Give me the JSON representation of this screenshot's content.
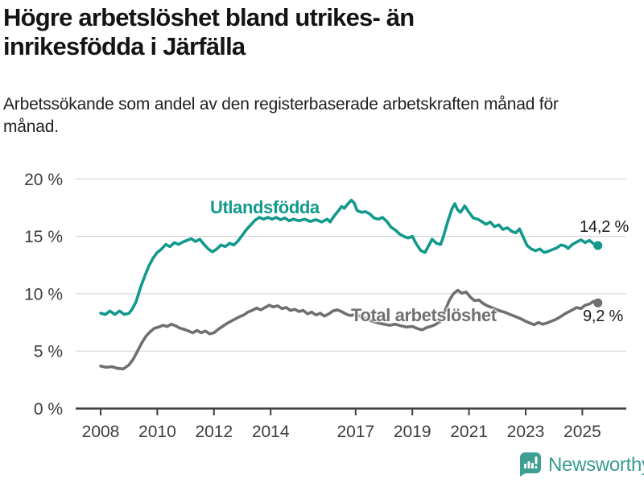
{
  "header": {
    "title": "Högre arbetslöshet bland utrikes- än inrikesfödda i Järfälla",
    "subtitle": "Arbetssökande som andel av den registerbaserade arbetskraften månad för månad."
  },
  "footer": {
    "brand": "Newsworthy",
    "brand_color": "#3a9c90",
    "logo_icon": "bar-chart-speech-bubble"
  },
  "colors": {
    "accent_teal": "#12998c",
    "line_gray": "#6f6f6f",
    "gridline": "#d8d8d8",
    "axis": "#3f3f3f",
    "tick_label": "#3d3d3d",
    "value_label": "#1a1a1a"
  },
  "chart_data": {
    "type": "line",
    "title": "Högre arbetslöshet bland utrikes- än inrikesfödda i Järfälla",
    "subtitle": "Arbetssökande som andel av den registerbaserade arbetskraften månad för månad.",
    "xlabel": "",
    "ylabel": "",
    "grid": "horizontal",
    "legend_position": "inline-labels",
    "xlim": [
      2007.8,
      2026.5
    ],
    "ylim": [
      0,
      20
    ],
    "x_ticks": [
      2008,
      2010,
      2012,
      2014,
      2017,
      2019,
      2021,
      2023,
      2025
    ],
    "y_ticks": [
      0,
      5,
      10,
      15,
      20
    ],
    "y_tick_suffix": " %",
    "series": [
      {
        "name": "Utlandsfödda",
        "color": "#12998c",
        "end_label": "14,2 %",
        "end_value": 14.2,
        "points": [
          [
            2008.0,
            8.3
          ],
          [
            2008.17,
            8.2
          ],
          [
            2008.33,
            8.5
          ],
          [
            2008.5,
            8.2
          ],
          [
            2008.67,
            8.5
          ],
          [
            2008.83,
            8.2
          ],
          [
            2009.0,
            8.3
          ],
          [
            2009.1,
            8.6
          ],
          [
            2009.25,
            9.3
          ],
          [
            2009.4,
            10.5
          ],
          [
            2009.55,
            11.5
          ],
          [
            2009.7,
            12.4
          ],
          [
            2009.85,
            13.1
          ],
          [
            2010.0,
            13.6
          ],
          [
            2010.15,
            13.9
          ],
          [
            2010.3,
            14.3
          ],
          [
            2010.45,
            14.1
          ],
          [
            2010.6,
            14.45
          ],
          [
            2010.75,
            14.3
          ],
          [
            2010.9,
            14.5
          ],
          [
            2011.05,
            14.65
          ],
          [
            2011.2,
            14.8
          ],
          [
            2011.35,
            14.55
          ],
          [
            2011.5,
            14.75
          ],
          [
            2011.65,
            14.3
          ],
          [
            2011.8,
            13.9
          ],
          [
            2011.95,
            13.65
          ],
          [
            2012.1,
            13.9
          ],
          [
            2012.25,
            14.25
          ],
          [
            2012.4,
            14.1
          ],
          [
            2012.55,
            14.4
          ],
          [
            2012.7,
            14.25
          ],
          [
            2012.85,
            14.6
          ],
          [
            2013.0,
            15.1
          ],
          [
            2013.15,
            15.6
          ],
          [
            2013.3,
            16.0
          ],
          [
            2013.45,
            16.4
          ],
          [
            2013.6,
            16.65
          ],
          [
            2013.75,
            16.5
          ],
          [
            2013.9,
            16.65
          ],
          [
            2014.05,
            16.5
          ],
          [
            2014.2,
            16.65
          ],
          [
            2014.35,
            16.45
          ],
          [
            2014.5,
            16.6
          ],
          [
            2014.65,
            16.35
          ],
          [
            2014.8,
            16.5
          ],
          [
            2015.0,
            16.35
          ],
          [
            2015.2,
            16.5
          ],
          [
            2015.4,
            16.3
          ],
          [
            2015.6,
            16.45
          ],
          [
            2015.8,
            16.25
          ],
          [
            2016.0,
            16.5
          ],
          [
            2016.1,
            16.25
          ],
          [
            2016.25,
            16.8
          ],
          [
            2016.4,
            17.25
          ],
          [
            2016.5,
            17.6
          ],
          [
            2016.6,
            17.45
          ],
          [
            2016.75,
            17.9
          ],
          [
            2016.85,
            18.15
          ],
          [
            2016.95,
            17.9
          ],
          [
            2017.05,
            17.25
          ],
          [
            2017.2,
            17.1
          ],
          [
            2017.35,
            17.15
          ],
          [
            2017.5,
            16.95
          ],
          [
            2017.65,
            16.6
          ],
          [
            2017.8,
            16.5
          ],
          [
            2017.95,
            16.65
          ],
          [
            2018.1,
            16.3
          ],
          [
            2018.25,
            15.8
          ],
          [
            2018.4,
            15.55
          ],
          [
            2018.55,
            15.2
          ],
          [
            2018.7,
            15.0
          ],
          [
            2018.85,
            14.85
          ],
          [
            2019.0,
            15.0
          ],
          [
            2019.15,
            14.3
          ],
          [
            2019.3,
            13.75
          ],
          [
            2019.45,
            13.6
          ],
          [
            2019.6,
            14.3
          ],
          [
            2019.7,
            14.75
          ],
          [
            2019.85,
            14.4
          ],
          [
            2020.0,
            14.3
          ],
          [
            2020.1,
            15.0
          ],
          [
            2020.25,
            16.3
          ],
          [
            2020.4,
            17.4
          ],
          [
            2020.5,
            17.85
          ],
          [
            2020.6,
            17.3
          ],
          [
            2020.7,
            17.1
          ],
          [
            2020.85,
            17.65
          ],
          [
            2021.0,
            17.1
          ],
          [
            2021.15,
            16.6
          ],
          [
            2021.3,
            16.5
          ],
          [
            2021.45,
            16.3
          ],
          [
            2021.6,
            16.05
          ],
          [
            2021.75,
            16.25
          ],
          [
            2021.9,
            15.85
          ],
          [
            2022.05,
            16.0
          ],
          [
            2022.2,
            15.6
          ],
          [
            2022.35,
            15.75
          ],
          [
            2022.5,
            15.45
          ],
          [
            2022.65,
            15.3
          ],
          [
            2022.78,
            15.65
          ],
          [
            2022.9,
            15.0
          ],
          [
            2023.05,
            14.2
          ],
          [
            2023.2,
            13.9
          ],
          [
            2023.35,
            13.75
          ],
          [
            2023.5,
            13.9
          ],
          [
            2023.65,
            13.6
          ],
          [
            2023.8,
            13.7
          ],
          [
            2023.95,
            13.85
          ],
          [
            2024.1,
            14.0
          ],
          [
            2024.25,
            14.25
          ],
          [
            2024.4,
            14.15
          ],
          [
            2024.5,
            13.95
          ],
          [
            2024.65,
            14.3
          ],
          [
            2024.8,
            14.5
          ],
          [
            2024.95,
            14.7
          ],
          [
            2025.1,
            14.45
          ],
          [
            2025.25,
            14.65
          ],
          [
            2025.4,
            14.35
          ],
          [
            2025.55,
            14.2
          ]
        ]
      },
      {
        "name": "Total arbetslöshet",
        "color": "#6f6f6f",
        "end_label": "9,2 %",
        "end_value": 9.2,
        "points": [
          [
            2008.0,
            3.7
          ],
          [
            2008.2,
            3.6
          ],
          [
            2008.4,
            3.65
          ],
          [
            2008.6,
            3.5
          ],
          [
            2008.8,
            3.45
          ],
          [
            2009.0,
            3.8
          ],
          [
            2009.15,
            4.3
          ],
          [
            2009.3,
            5.0
          ],
          [
            2009.45,
            5.7
          ],
          [
            2009.6,
            6.3
          ],
          [
            2009.75,
            6.7
          ],
          [
            2009.9,
            7.0
          ],
          [
            2010.05,
            7.1
          ],
          [
            2010.2,
            7.25
          ],
          [
            2010.35,
            7.15
          ],
          [
            2010.5,
            7.35
          ],
          [
            2010.65,
            7.2
          ],
          [
            2010.8,
            7.0
          ],
          [
            2010.95,
            6.9
          ],
          [
            2011.1,
            6.75
          ],
          [
            2011.25,
            6.6
          ],
          [
            2011.4,
            6.8
          ],
          [
            2011.55,
            6.6
          ],
          [
            2011.7,
            6.75
          ],
          [
            2011.85,
            6.5
          ],
          [
            2012.0,
            6.6
          ],
          [
            2012.15,
            6.9
          ],
          [
            2012.3,
            7.15
          ],
          [
            2012.45,
            7.4
          ],
          [
            2012.6,
            7.6
          ],
          [
            2012.75,
            7.8
          ],
          [
            2012.9,
            8.0
          ],
          [
            2013.05,
            8.15
          ],
          [
            2013.2,
            8.4
          ],
          [
            2013.35,
            8.55
          ],
          [
            2013.5,
            8.75
          ],
          [
            2013.65,
            8.6
          ],
          [
            2013.8,
            8.8
          ],
          [
            2013.95,
            9.0
          ],
          [
            2014.1,
            8.85
          ],
          [
            2014.25,
            8.95
          ],
          [
            2014.4,
            8.7
          ],
          [
            2014.55,
            8.8
          ],
          [
            2014.7,
            8.55
          ],
          [
            2014.85,
            8.65
          ],
          [
            2015.0,
            8.45
          ],
          [
            2015.15,
            8.55
          ],
          [
            2015.3,
            8.25
          ],
          [
            2015.45,
            8.4
          ],
          [
            2015.6,
            8.15
          ],
          [
            2015.75,
            8.3
          ],
          [
            2015.9,
            8.05
          ],
          [
            2016.05,
            8.25
          ],
          [
            2016.2,
            8.5
          ],
          [
            2016.35,
            8.6
          ],
          [
            2016.5,
            8.45
          ],
          [
            2016.65,
            8.25
          ],
          [
            2016.8,
            8.1
          ],
          [
            2017.0,
            8.2
          ],
          [
            2017.2,
            8.0
          ],
          [
            2017.4,
            7.8
          ],
          [
            2017.6,
            7.6
          ],
          [
            2017.8,
            7.45
          ],
          [
            2018.0,
            7.35
          ],
          [
            2018.2,
            7.25
          ],
          [
            2018.4,
            7.35
          ],
          [
            2018.6,
            7.2
          ],
          [
            2018.8,
            7.1
          ],
          [
            2019.0,
            7.15
          ],
          [
            2019.2,
            6.95
          ],
          [
            2019.35,
            6.85
          ],
          [
            2019.5,
            7.05
          ],
          [
            2019.65,
            7.15
          ],
          [
            2019.8,
            7.3
          ],
          [
            2020.0,
            7.6
          ],
          [
            2020.15,
            8.5
          ],
          [
            2020.3,
            9.4
          ],
          [
            2020.45,
            10.0
          ],
          [
            2020.6,
            10.3
          ],
          [
            2020.75,
            10.05
          ],
          [
            2020.9,
            10.15
          ],
          [
            2021.05,
            9.7
          ],
          [
            2021.2,
            9.4
          ],
          [
            2021.35,
            9.45
          ],
          [
            2021.5,
            9.15
          ],
          [
            2021.65,
            8.95
          ],
          [
            2021.8,
            8.8
          ],
          [
            2021.95,
            8.65
          ],
          [
            2022.1,
            8.5
          ],
          [
            2022.25,
            8.4
          ],
          [
            2022.4,
            8.25
          ],
          [
            2022.55,
            8.1
          ],
          [
            2022.7,
            7.95
          ],
          [
            2022.85,
            7.8
          ],
          [
            2023.0,
            7.6
          ],
          [
            2023.15,
            7.45
          ],
          [
            2023.3,
            7.3
          ],
          [
            2023.45,
            7.5
          ],
          [
            2023.6,
            7.35
          ],
          [
            2023.75,
            7.45
          ],
          [
            2023.9,
            7.6
          ],
          [
            2024.05,
            7.75
          ],
          [
            2024.2,
            7.95
          ],
          [
            2024.35,
            8.2
          ],
          [
            2024.5,
            8.4
          ],
          [
            2024.65,
            8.6
          ],
          [
            2024.8,
            8.8
          ],
          [
            2024.95,
            8.7
          ],
          [
            2025.1,
            9.0
          ],
          [
            2025.25,
            9.1
          ],
          [
            2025.4,
            9.35
          ],
          [
            2025.55,
            9.2
          ]
        ]
      }
    ]
  }
}
